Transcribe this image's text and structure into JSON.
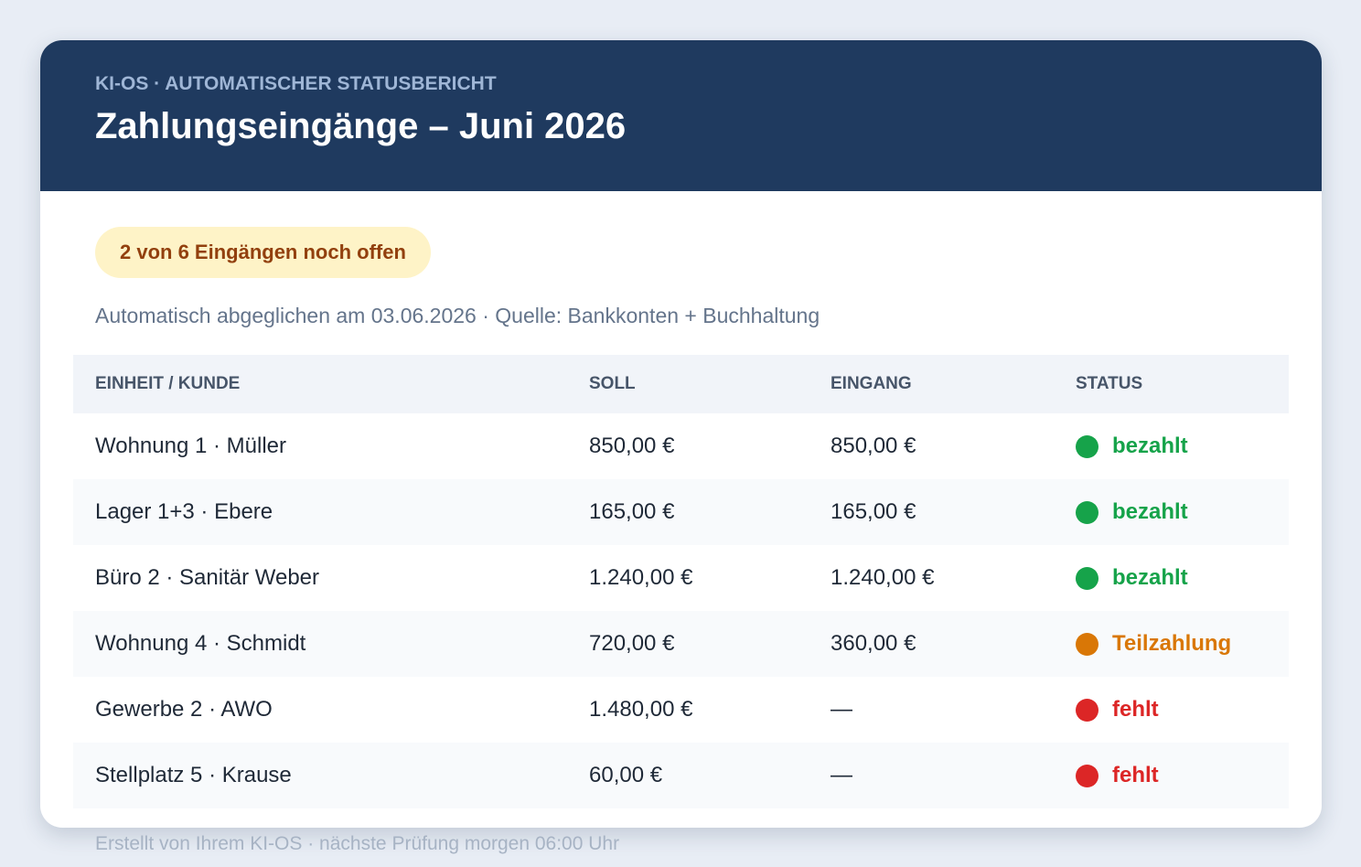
{
  "header": {
    "kicker": "KI-OS · AUTOMATISCHER STATUSBERICHT",
    "title": "Zahlungseingänge – Juni 2026"
  },
  "badge": "2 von 6 Eingängen noch offen",
  "subtitle": "Automatisch abgeglichen am 03.06.2026 · Quelle: Bankkonten + Buchhaltung",
  "table": {
    "columns": [
      "EINHEIT / KUNDE",
      "SOLL",
      "EINGANG",
      "STATUS"
    ],
    "rows": [
      {
        "unit": "Wohnung 1 · Müller",
        "soll": "850,00 €",
        "eingang": "850,00 €",
        "status": "bezahlt",
        "color": "#16a34a"
      },
      {
        "unit": "Lager 1+3 · Ebere",
        "soll": "165,00 €",
        "eingang": "165,00 €",
        "status": "bezahlt",
        "color": "#16a34a"
      },
      {
        "unit": "Büro 2 · Sanitär Weber",
        "soll": "1.240,00 €",
        "eingang": "1.240,00 €",
        "status": "bezahlt",
        "color": "#16a34a"
      },
      {
        "unit": "Wohnung 4 · Schmidt",
        "soll": "720,00 €",
        "eingang": "360,00 €",
        "status": "Teilzahlung",
        "color": "#d97706"
      },
      {
        "unit": "Gewerbe 2 · AWO",
        "soll": "1.480,00 €",
        "eingang": "—",
        "status": "fehlt",
        "color": "#dc2626"
      },
      {
        "unit": "Stellplatz 5 · Krause",
        "soll": "60,00 €",
        "eingang": "—",
        "status": "fehlt",
        "color": "#dc2626"
      }
    ]
  },
  "footer": "Erstellt von Ihrem KI-OS · nächste Prüfung morgen 06:00 Uhr"
}
